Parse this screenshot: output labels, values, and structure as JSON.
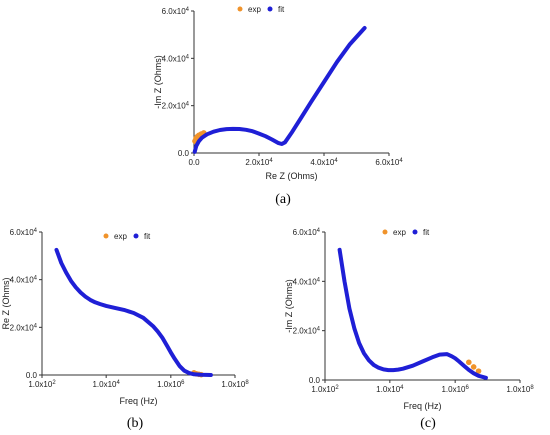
{
  "colors": {
    "exp": "#F0932B",
    "fit": "#1F1FD6",
    "axis": "#333333"
  },
  "chart_data": [
    {
      "id": "a",
      "type": "line",
      "panel_label": "(a)",
      "xlabel": "Re Z (Ohms)",
      "ylabel": "-Im Z (Ohms)",
      "xlim": [
        0,
        60000
      ],
      "ylim": [
        0,
        60000
      ],
      "x_ticks": [
        "0.0",
        "2.0x10^4",
        "4.0x10^4",
        "6.0x10^4"
      ],
      "y_ticks": [
        "0.0",
        "2.0x10^4",
        "4.0x10^4",
        "6.0x10^4"
      ],
      "x_scale": "linear",
      "legend": [
        "exp",
        "fit"
      ],
      "grid": false,
      "series": [
        {
          "name": "exp",
          "x": [
            300,
            600,
            1000,
            1500,
            2200,
            3000
          ],
          "y": [
            5000,
            6200,
            6900,
            7500,
            8000,
            8500
          ]
        },
        {
          "name": "fit",
          "x": [
            200,
            700,
            1500,
            2500,
            4000,
            6000,
            8000,
            10000,
            12000,
            14000,
            16000,
            18000,
            20000,
            22000,
            24000,
            26000,
            27000,
            28000,
            30000,
            33000,
            36000,
            40000,
            44000,
            48000,
            52500
          ],
          "y": [
            500,
            3000,
            5000,
            6500,
            7900,
            9000,
            9700,
            10100,
            10200,
            10150,
            9800,
            9200,
            8200,
            7100,
            5700,
            4200,
            3800,
            4500,
            8500,
            15000,
            21500,
            30000,
            38500,
            46000,
            52800
          ]
        }
      ]
    },
    {
      "id": "b",
      "type": "line",
      "panel_label": "(b)",
      "xlabel": "Freq (Hz)",
      "ylabel": "Re Z (Ohms)",
      "xlim": [
        1,
        5
      ],
      "ylim": [
        0,
        60000
      ],
      "x_scale": "log",
      "x_ticks": [
        "1.0x10^2",
        "1.0x10^4",
        "1.0x10^6",
        "1.0x10^8"
      ],
      "x_tick_values": [
        1,
        2.33,
        3.67,
        5
      ],
      "y_ticks": [
        "0.0",
        "2.0x10^4",
        "4.0x10^4",
        "6.0x10^4"
      ],
      "legend": [
        "exp",
        "fit"
      ],
      "grid": false,
      "series": [
        {
          "name": "exp",
          "x": [
            4.15,
            4.2,
            4.25,
            4.3
          ],
          "y": [
            900,
            500,
            300,
            150
          ]
        },
        {
          "name": "fit",
          "x": [
            1.3,
            1.4,
            1.5,
            1.6,
            1.7,
            1.8,
            1.9,
            2.0,
            2.1,
            2.2,
            2.33,
            2.5,
            2.7,
            2.9,
            3.1,
            3.3,
            3.4,
            3.5,
            3.6,
            3.67,
            3.75,
            3.85,
            3.95,
            4.05,
            4.15,
            4.3,
            4.5
          ],
          "y": [
            52500,
            47000,
            43000,
            39500,
            36800,
            34600,
            32900,
            31500,
            30500,
            29800,
            29000,
            28200,
            27300,
            26000,
            24000,
            20500,
            18200,
            15500,
            12000,
            9500,
            6800,
            3800,
            1800,
            800,
            300,
            80,
            0
          ]
        }
      ]
    },
    {
      "id": "c",
      "type": "line",
      "panel_label": "(c)",
      "xlabel": "Freq (Hz)",
      "ylabel": "-Im Z (Ohms)",
      "xlim": [
        1,
        5
      ],
      "ylim": [
        0,
        60000
      ],
      "x_scale": "log",
      "x_ticks": [
        "1.0x10^2",
        "1.0x10^4",
        "1.0x10^6",
        "1.0x10^8"
      ],
      "x_tick_values": [
        1,
        2.33,
        3.67,
        5
      ],
      "y_ticks": [
        "0.0",
        "2.0x10^4",
        "4.0x10^4",
        "6.0x10^4"
      ],
      "legend": [
        "exp",
        "fit"
      ],
      "grid": false,
      "series": [
        {
          "name": "exp",
          "x": [
            3.95,
            4.05,
            4.15
          ],
          "y": [
            7200,
            5300,
            3600
          ]
        },
        {
          "name": "fit",
          "x": [
            1.3,
            1.4,
            1.5,
            1.6,
            1.7,
            1.8,
            1.9,
            2.0,
            2.1,
            2.2,
            2.3,
            2.4,
            2.5,
            2.6,
            2.8,
            3.0,
            3.2,
            3.35,
            3.5,
            3.6,
            3.67,
            3.75,
            3.85,
            3.95,
            4.05,
            4.15,
            4.3
          ],
          "y": [
            52800,
            40000,
            29000,
            21000,
            15000,
            10800,
            8000,
            6100,
            5000,
            4300,
            4000,
            4000,
            4200,
            4600,
            5800,
            7500,
            9200,
            10300,
            10500,
            9600,
            8800,
            7500,
            5800,
            4100,
            2700,
            1700,
            900
          ]
        }
      ]
    }
  ]
}
